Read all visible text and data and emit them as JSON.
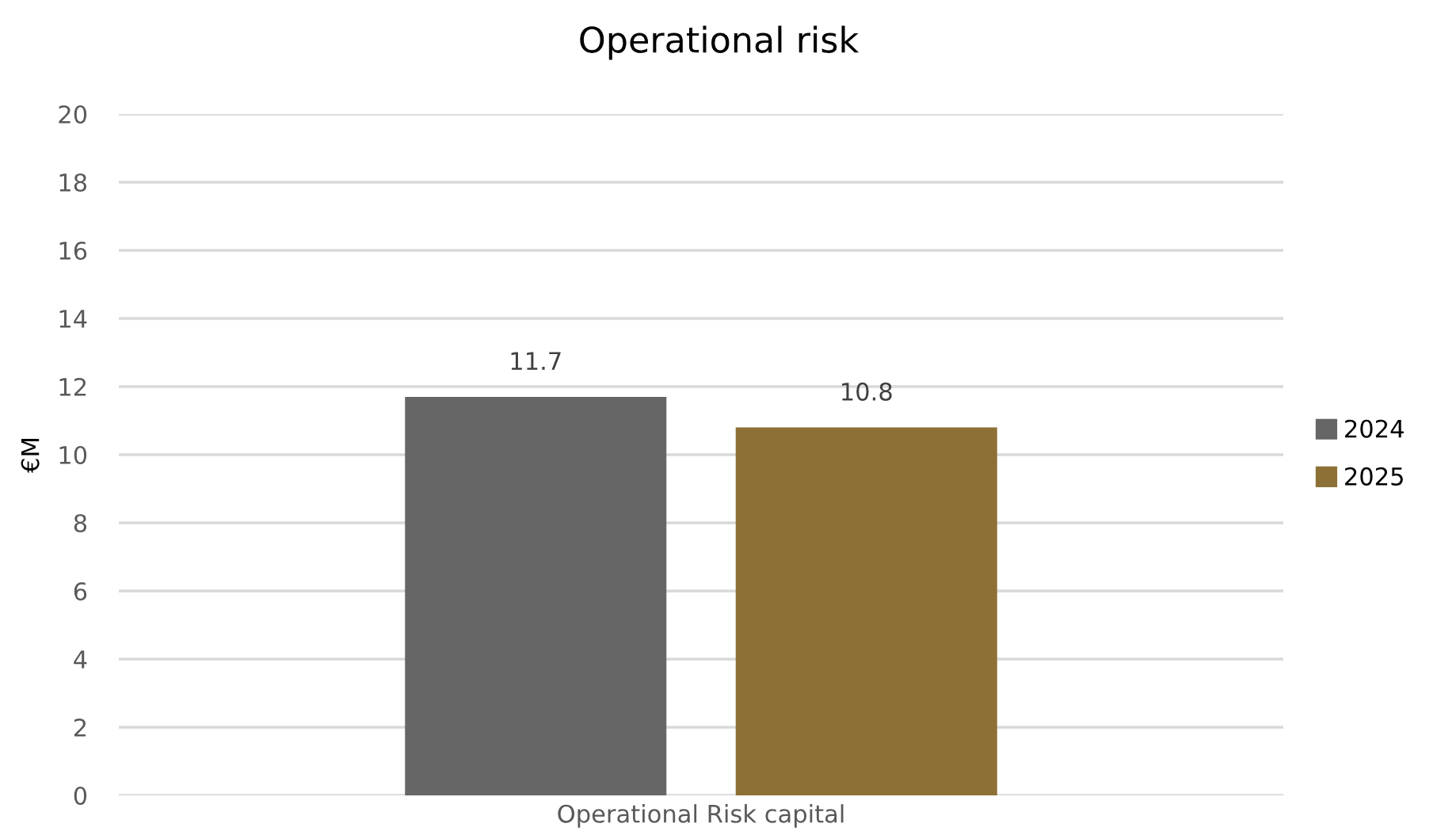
{
  "chart_data": {
    "type": "bar",
    "title": "Operational risk",
    "ylabel": "€M",
    "categories": [
      "Operational Risk capital"
    ],
    "series": [
      {
        "name": "2024",
        "color": "#666666",
        "values": [
          11.7
        ]
      },
      {
        "name": "2025",
        "color": "#8c7036",
        "values": [
          10.8
        ]
      }
    ],
    "ylim": [
      0,
      20
    ],
    "yticks": [
      0,
      2,
      4,
      6,
      8,
      10,
      12,
      14,
      16,
      18,
      20
    ],
    "grid": "y",
    "legend": "right",
    "data_labels": true
  }
}
